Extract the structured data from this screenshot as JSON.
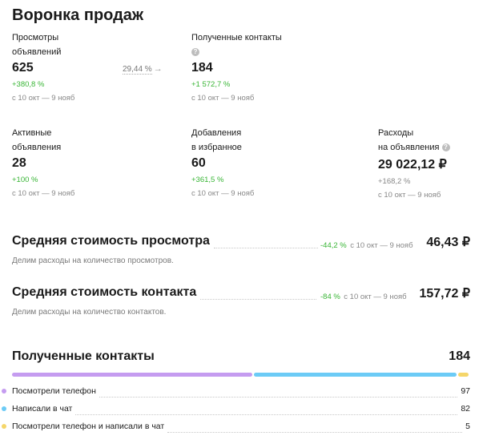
{
  "title": "Воронка продаж",
  "funnel": {
    "views": {
      "label_line1": "Просмотры",
      "label_line2": "объявлений",
      "value": "625",
      "change": "+380,8 %",
      "period": "с 10 окт — 9 нояб"
    },
    "conversion": "29,44 %",
    "contacts": {
      "label": "Полученные контакты",
      "value": "184",
      "change": "+1 572,7 %",
      "period": "с 10 окт — 9 нояб"
    },
    "active": {
      "label_line1": "Активные",
      "label_line2": "объявления",
      "value": "28",
      "change": "+100 %",
      "period": "с 10 окт — 9 нояб"
    },
    "favorites": {
      "label_line1": "Добавления",
      "label_line2": "в избранное",
      "value": "60",
      "change": "+361,5 %",
      "period": "с 10 окт — 9 нояб"
    },
    "expenses": {
      "label_line1": "Расходы",
      "label_line2": "на объявления",
      "value": "29 022,12 ₽",
      "change": "+168,2 %",
      "period": "с 10 окт — 9 нояб"
    }
  },
  "avg_view": {
    "title": "Средняя стоимость просмотра",
    "change": "-44,2 %",
    "period": "с 10 окт — 9 нояб",
    "value": "46,43 ₽",
    "note": "Делим расходы на количество просмотров."
  },
  "avg_contact": {
    "title": "Средняя стоимость контакта",
    "change": "-84 %",
    "period": "с 10 окт — 9 нояб",
    "value": "157,72 ₽",
    "note": "Делим расходы на количество контактов."
  },
  "contacts_section": {
    "title": "Полученные контакты",
    "total": "184",
    "segments": [
      {
        "label": "Посмотрели телефон",
        "value": 97,
        "color": "#c59cf0"
      },
      {
        "label": "Написали в чат",
        "value": 82,
        "color": "#6ccbf6"
      },
      {
        "label": "Посмотрели телефон и написали в чат",
        "value": 5,
        "color": "#f5d66a"
      }
    ],
    "help_icon": "question-circle-icon"
  },
  "colors": {
    "positive": "#38b535",
    "muted": "#888888"
  }
}
